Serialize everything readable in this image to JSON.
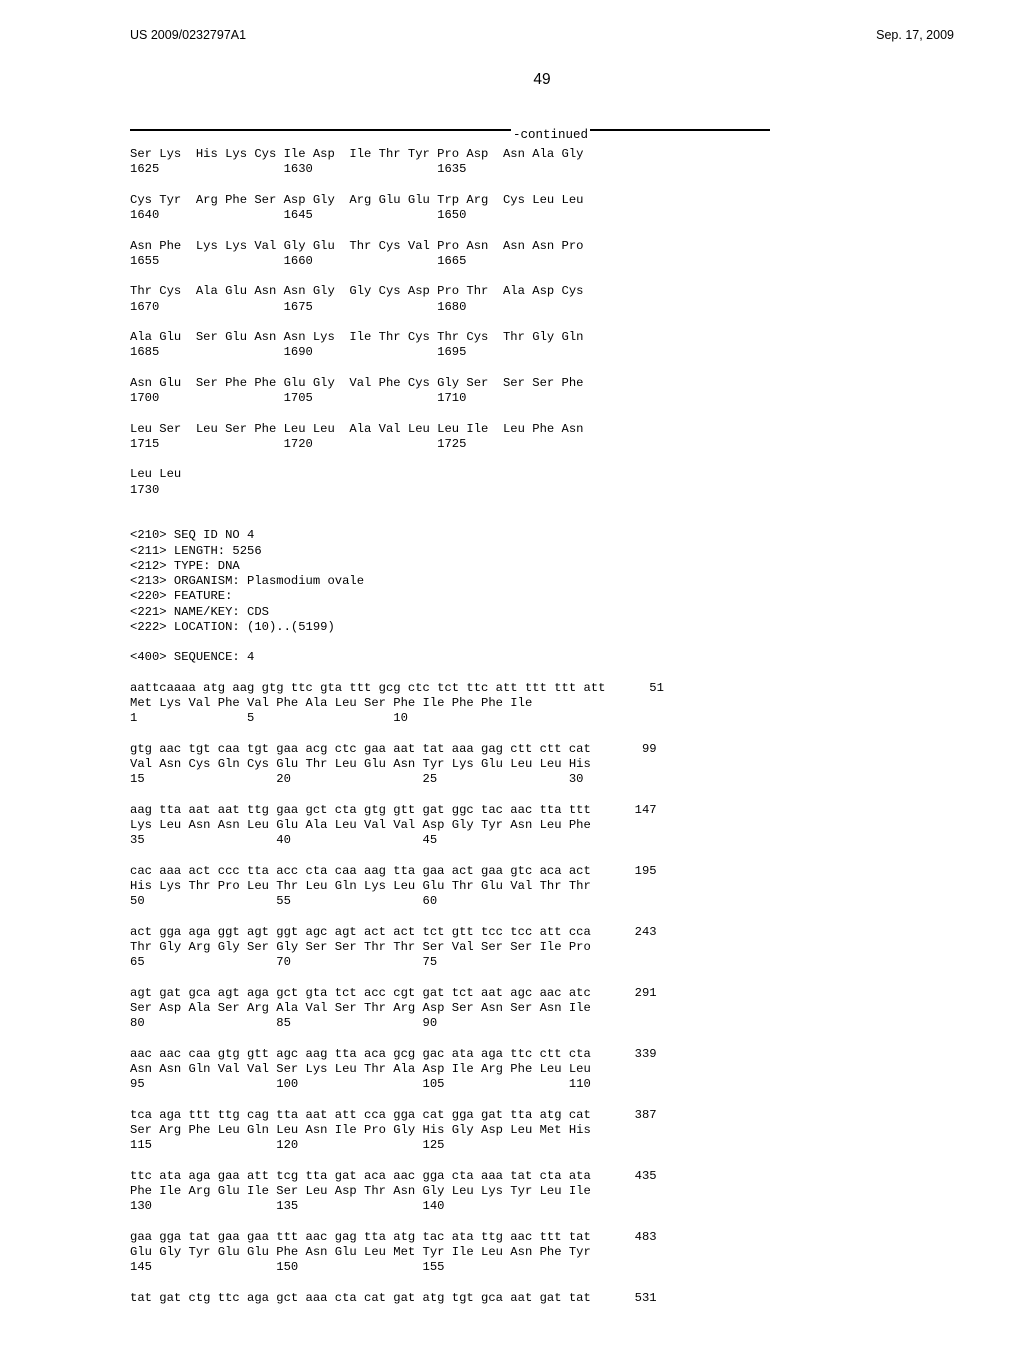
{
  "header": {
    "pubnum": "US 2009/0232797A1",
    "pubdate": "Sep. 17, 2009",
    "page": "49"
  },
  "continued": "-continued",
  "sequence_text": "Ser Lys  His Lys Cys Ile Asp  Ile Thr Tyr Pro Asp  Asn Ala Gly\n1625                 1630                 1635\n\nCys Tyr  Arg Phe Ser Asp Gly  Arg Glu Glu Trp Arg  Cys Leu Leu\n1640                 1645                 1650\n\nAsn Phe  Lys Lys Val Gly Glu  Thr Cys Val Pro Asn  Asn Asn Pro\n1655                 1660                 1665\n\nThr Cys  Ala Glu Asn Asn Gly  Gly Cys Asp Pro Thr  Ala Asp Cys\n1670                 1675                 1680\n\nAla Glu  Ser Glu Asn Asn Lys  Ile Thr Cys Thr Cys  Thr Gly Gln\n1685                 1690                 1695\n\nAsn Glu  Ser Phe Phe Glu Gly  Val Phe Cys Gly Ser  Ser Ser Phe\n1700                 1705                 1710\n\nLeu Ser  Leu Ser Phe Leu Leu  Ala Val Leu Leu Ile  Leu Phe Asn\n1715                 1720                 1725\n\nLeu Leu\n1730\n\n\n<210> SEQ ID NO 4\n<211> LENGTH: 5256\n<212> TYPE: DNA\n<213> ORGANISM: Plasmodium ovale\n<220> FEATURE:\n<221> NAME/KEY: CDS\n<222> LOCATION: (10)..(5199)\n\n<400> SEQUENCE: 4\n\naattcaaaa atg aag gtg ttc gta ttt gcg ctc tct ttc att ttt ttt att      51\nMet Lys Val Phe Val Phe Ala Leu Ser Phe Ile Phe Phe Ile\n1               5                   10\n\ngtg aac tgt caa tgt gaa acg ctc gaa aat tat aaa gag ctt ctt cat       99\nVal Asn Cys Gln Cys Glu Thr Leu Glu Asn Tyr Lys Glu Leu Leu His\n15                  20                  25                  30\n\naag tta aat aat ttg gaa gct cta gtg gtt gat ggc tac aac tta ttt      147\nLys Leu Asn Asn Leu Glu Ala Leu Val Val Asp Gly Tyr Asn Leu Phe\n35                  40                  45\n\ncac aaa act ccc tta acc cta caa aag tta gaa act gaa gtc aca act      195\nHis Lys Thr Pro Leu Thr Leu Gln Lys Leu Glu Thr Glu Val Thr Thr\n50                  55                  60\n\nact gga aga ggt agt ggt agc agt act act tct gtt tcc tcc att cca      243\nThr Gly Arg Gly Ser Gly Ser Ser Thr Thr Ser Val Ser Ser Ile Pro\n65                  70                  75\n\nagt gat gca agt aga gct gta tct acc cgt gat tct aat agc aac atc      291\nSer Asp Ala Ser Arg Ala Val Ser Thr Arg Asp Ser Asn Ser Asn Ile\n80                  85                  90\n\naac aac caa gtg gtt agc aag tta aca gcg gac ata aga ttc ctt cta      339\nAsn Asn Gln Val Val Ser Lys Leu Thr Ala Asp Ile Arg Phe Leu Leu\n95                  100                 105                 110\n\ntca aga ttt ttg cag tta aat att cca gga cat gga gat tta atg cat      387\nSer Arg Phe Leu Gln Leu Asn Ile Pro Gly His Gly Asp Leu Met His\n115                 120                 125\n\nttc ata aga gaa att tcg tta gat aca aac gga cta aaa tat cta ata      435\nPhe Ile Arg Glu Ile Ser Leu Asp Thr Asn Gly Leu Lys Tyr Leu Ile\n130                 135                 140\n\ngaa gga tat gaa gaa ttt aac gag tta atg tac ata ttg aac ttt tat      483\nGlu Gly Tyr Glu Glu Phe Asn Glu Leu Met Tyr Ile Leu Asn Phe Tyr\n145                 150                 155\n\ntat gat ctg ttc aga gct aaa cta cat gat atg tgt gca aat gat tat      531"
}
